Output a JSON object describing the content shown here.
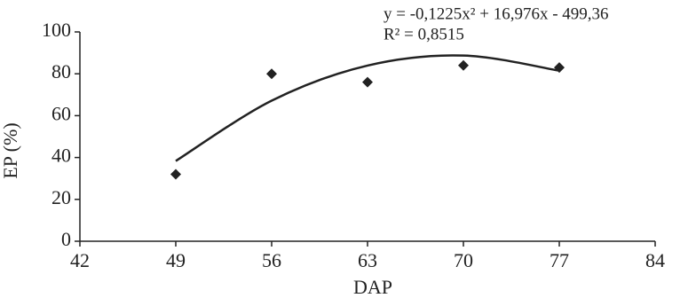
{
  "chart_data": {
    "type": "scatter",
    "xlabel": "DAP",
    "ylabel": "EP (%)",
    "annotations": [
      "y = -0,1225x² + 16,976x - 499,36",
      "R² = 0,8515"
    ],
    "x": [
      49,
      56,
      63,
      70,
      77
    ],
    "values": [
      32,
      80,
      76,
      84,
      83
    ],
    "color": "#222222",
    "trendline": {
      "x": [
        49,
        56,
        63,
        70,
        77
      ],
      "values": [
        38.34,
        67.14,
        83.93,
        88.71,
        81.49
      ],
      "color": "#222222"
    },
    "xlim": [
      42,
      84
    ],
    "xticks": [
      42,
      49,
      56,
      63,
      70,
      77,
      84
    ],
    "ylim": [
      0,
      100
    ],
    "yticks": [
      0,
      20,
      40,
      60,
      80,
      100
    ],
    "grid": false
  }
}
